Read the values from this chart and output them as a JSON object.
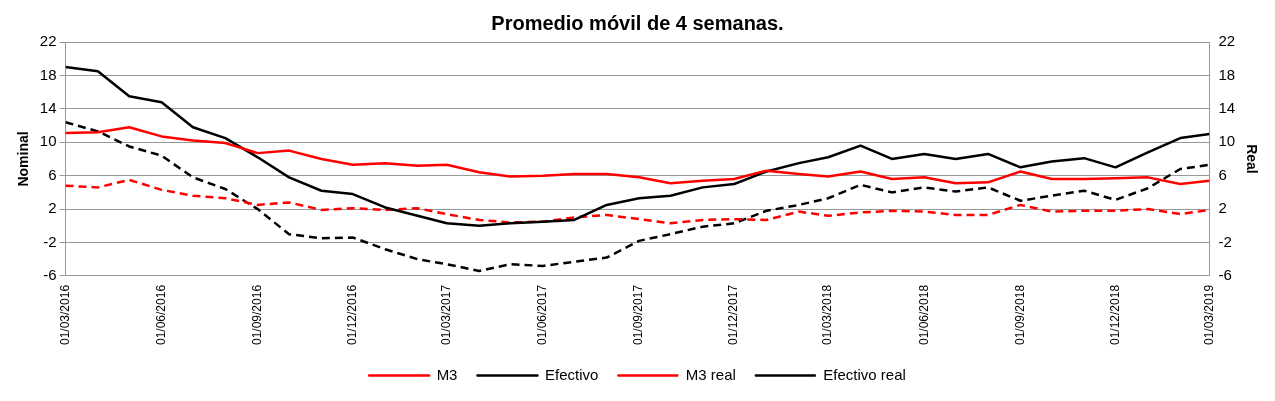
{
  "chart_data": {
    "type": "line",
    "title": "Promedio móvil de 4 semanas.",
    "ylabel": "Nominal",
    "y2label": "Real",
    "x": [
      "2016-03-01",
      "2016-04-01",
      "2016-05-01",
      "2016-06-01",
      "2016-07-01",
      "2016-08-01",
      "2016-09-01",
      "2016-10-01",
      "2016-11-01",
      "2016-12-01",
      "2017-01-01",
      "2017-02-01",
      "2017-03-01",
      "2017-04-01",
      "2017-05-01",
      "2017-06-01",
      "2017-07-01",
      "2017-08-01",
      "2017-09-01",
      "2017-10-01",
      "2017-11-01",
      "2017-12-01",
      "2018-01-01",
      "2018-02-01",
      "2018-03-01",
      "2018-04-01",
      "2018-05-01",
      "2018-06-01",
      "2018-07-01",
      "2018-08-01",
      "2018-09-01",
      "2018-10-01",
      "2018-11-01",
      "2018-12-01",
      "2019-01-01",
      "2019-02-01",
      "2019-03-01"
    ],
    "series": [
      {
        "name": "M3",
        "color": "#ff0000",
        "line_style": "solid",
        "values": [
          11.1,
          11.2,
          11.8,
          10.7,
          10.2,
          9.9,
          8.7,
          9.0,
          8.0,
          7.3,
          7.5,
          7.2,
          7.3,
          6.4,
          5.9,
          6.0,
          6.2,
          6.2,
          5.8,
          5.1,
          5.4,
          5.6,
          6.6,
          6.2,
          5.9,
          6.5,
          5.6,
          5.8,
          5.1,
          5.2,
          6.5,
          5.6,
          5.6,
          5.7,
          5.8,
          5.0,
          5.4
        ]
      },
      {
        "name": "Efectivo",
        "color": "#000000",
        "line_style": "solid",
        "values": [
          19.0,
          18.5,
          15.5,
          14.8,
          11.8,
          10.5,
          8.2,
          5.8,
          4.2,
          3.8,
          2.2,
          1.2,
          0.3,
          0.0,
          0.3,
          0.5,
          0.7,
          2.5,
          3.3,
          3.6,
          4.6,
          5.0,
          6.5,
          7.5,
          8.2,
          9.6,
          8.0,
          8.6,
          8.0,
          8.6,
          7.0,
          7.7,
          8.1,
          7.0,
          8.8,
          10.5,
          11.0
        ]
      },
      {
        "name": "M3 real",
        "color": "#ff0000",
        "line_style": "dashed",
        "values": [
          4.8,
          4.6,
          5.5,
          4.3,
          3.6,
          3.3,
          2.5,
          2.8,
          1.9,
          2.1,
          1.9,
          2.1,
          1.4,
          0.7,
          0.4,
          0.5,
          1.0,
          1.3,
          0.8,
          0.3,
          0.7,
          0.8,
          0.7,
          1.7,
          1.2,
          1.6,
          1.8,
          1.7,
          1.3,
          1.3,
          2.5,
          1.7,
          1.8,
          1.8,
          2.0,
          1.4,
          1.9
        ]
      },
      {
        "name": "Efectivo real",
        "color": "#000000",
        "line_style": "dashed",
        "values": [
          12.4,
          11.3,
          9.5,
          8.4,
          5.8,
          4.4,
          2.0,
          -1.0,
          -1.5,
          -1.4,
          -2.8,
          -4.0,
          -4.6,
          -5.4,
          -4.6,
          -4.8,
          -4.3,
          -3.8,
          -1.8,
          -1.0,
          -0.1,
          0.3,
          1.8,
          2.5,
          3.3,
          4.9,
          4.0,
          4.6,
          4.1,
          4.6,
          3.0,
          3.6,
          4.2,
          3.1,
          4.5,
          6.8,
          7.3
        ]
      }
    ],
    "xlim": [
      "2016-03-01",
      "2019-03-01"
    ],
    "xticks": [
      {
        "value": "2016-03-01",
        "label": "01/03/2016"
      },
      {
        "value": "2016-06-01",
        "label": "01/06/2016"
      },
      {
        "value": "2016-09-01",
        "label": "01/09/2016"
      },
      {
        "value": "2016-12-01",
        "label": "01/12/2016"
      },
      {
        "value": "2017-03-01",
        "label": "01/03/2017"
      },
      {
        "value": "2017-06-01",
        "label": "01/06/2017"
      },
      {
        "value": "2017-09-01",
        "label": "01/09/2017"
      },
      {
        "value": "2017-12-01",
        "label": "01/12/2017"
      },
      {
        "value": "2018-03-01",
        "label": "01/03/2018"
      },
      {
        "value": "2018-06-01",
        "label": "01/06/2018"
      },
      {
        "value": "2018-09-01",
        "label": "01/09/2018"
      },
      {
        "value": "2018-12-01",
        "label": "01/12/2018"
      },
      {
        "value": "2019-03-01",
        "label": "01/03/2019"
      }
    ],
    "ylim": [
      -6,
      22
    ],
    "yticks": [
      -6,
      -2,
      2,
      6,
      10,
      14,
      18,
      22
    ],
    "y2lim": [
      -6,
      22
    ],
    "y2ticks": [
      -6,
      -2,
      2,
      6,
      10,
      14,
      18,
      22
    ],
    "grid": "y",
    "legend": "bottom",
    "marker": "none"
  }
}
